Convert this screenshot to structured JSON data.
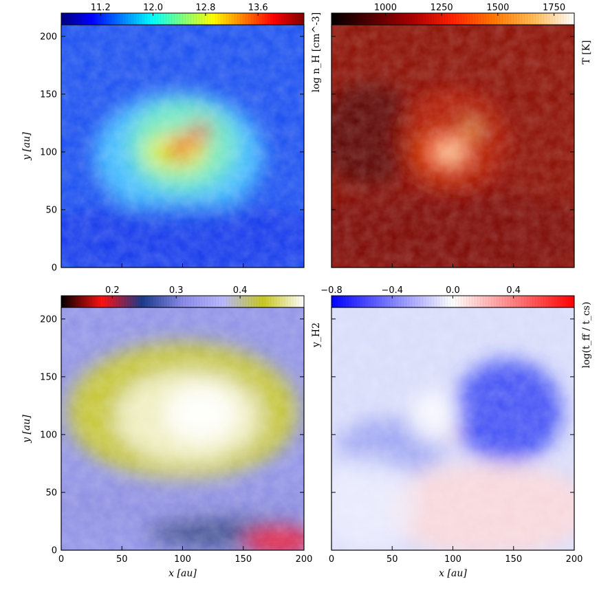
{
  "chart_data": [
    {
      "type": "heatmap",
      "panel": "top-left",
      "quantity": "density",
      "colorbar_label": "log n_H [cm^-3]",
      "colorbar_ticks": [
        "11.2",
        "12.0",
        "12.8",
        "13.6"
      ],
      "colorbar_tick_values": [
        11.2,
        12.0,
        12.8,
        13.6
      ],
      "colorbar_range": [
        10.6,
        14.3
      ],
      "colormap": [
        "#00007f",
        "#0000ff",
        "#007fff",
        "#00ffff",
        "#7fff7f",
        "#ffff00",
        "#ff7f00",
        "#ff0000",
        "#7f0000"
      ],
      "ylabel": "y [au]",
      "xlim": [
        0,
        200
      ],
      "ylim": [
        0,
        210
      ],
      "y_ticks": [
        0,
        50,
        100,
        150,
        200
      ],
      "y_tick_labels": [
        "0",
        "50",
        "100",
        "150",
        "200"
      ],
      "x_ticks": [
        0,
        50,
        100,
        150,
        200
      ],
      "x_tick_labels": [],
      "background": "#1a4ff0",
      "features": [
        {
          "x": 97,
          "y": 97,
          "rx": 70,
          "ry": 55,
          "color": "#45c7ff",
          "opacity": 0.9
        },
        {
          "x": 100,
          "y": 105,
          "rx": 45,
          "ry": 40,
          "color": "#7cf3b0",
          "opacity": 0.8
        },
        {
          "x": 95,
          "y": 100,
          "rx": 26,
          "ry": 17,
          "color": "#e8f538",
          "opacity": 0.9
        },
        {
          "x": 100,
          "y": 105,
          "rx": 14,
          "ry": 10,
          "color": "#ff8a1e",
          "opacity": 0.9
        },
        {
          "x": 96,
          "y": 98,
          "rx": 8,
          "ry": 6,
          "color": "#c00000",
          "opacity": 1
        },
        {
          "x": 115,
          "y": 118,
          "rx": 8,
          "ry": 9,
          "color": "#e02000",
          "opacity": 0.9
        },
        {
          "x": 100,
          "y": 25,
          "rx": 140,
          "ry": 30,
          "color": "#0a2fe8",
          "opacity": 0.7
        }
      ]
    },
    {
      "type": "heatmap",
      "panel": "top-right",
      "quantity": "temperature",
      "colorbar_label": "T [K]",
      "colorbar_ticks": [
        "1000",
        "1250",
        "1500",
        "1750"
      ],
      "colorbar_tick_values": [
        1000,
        1250,
        1500,
        1750
      ],
      "colorbar_range": [
        760,
        1840
      ],
      "colormap": [
        "#000000",
        "#550000",
        "#aa0000",
        "#ff2200",
        "#ff7700",
        "#ffbb55",
        "#ffffff"
      ],
      "xlim": [
        0,
        200
      ],
      "ylim": [
        0,
        210
      ],
      "y_ticks": [
        0,
        50,
        100,
        150,
        200
      ],
      "y_tick_labels": [],
      "x_ticks": [
        0,
        50,
        100,
        150,
        200
      ],
      "x_tick_labels": [],
      "background": "#8a0c00",
      "features": [
        {
          "x": 30,
          "y": 115,
          "rx": 40,
          "ry": 45,
          "color": "#500500",
          "opacity": 0.8
        },
        {
          "x": 100,
          "y": 110,
          "rx": 45,
          "ry": 45,
          "color": "#c21800",
          "opacity": 0.7
        },
        {
          "x": 95,
          "y": 100,
          "rx": 22,
          "ry": 18,
          "color": "#ff5a00",
          "opacity": 0.8
        },
        {
          "x": 98,
          "y": 100,
          "rx": 10,
          "ry": 8,
          "color": "#fff1c0",
          "opacity": 0.9
        },
        {
          "x": 115,
          "y": 120,
          "rx": 6,
          "ry": 7,
          "color": "#ffcc70",
          "opacity": 0.9
        },
        {
          "x": 100,
          "y": 30,
          "rx": 140,
          "ry": 35,
          "color": "#700800",
          "opacity": 0.6
        }
      ]
    },
    {
      "type": "heatmap",
      "panel": "bottom-left",
      "quantity": "H2 fraction",
      "colorbar_label": "y_H2",
      "colorbar_ticks": [
        "0.2",
        "0.3",
        "0.4"
      ],
      "colorbar_tick_values": [
        0.2,
        0.3,
        0.4
      ],
      "colorbar_range": [
        0.12,
        0.5
      ],
      "colormap": [
        "#000000",
        "#ff1010",
        "#1a3a8a",
        "#8a8ae8",
        "#b8b8ff",
        "#c8c820",
        "#ffffff"
      ],
      "xlabel": "x [au]",
      "ylabel": "y [au]",
      "xlim": [
        0,
        200
      ],
      "ylim": [
        0,
        210
      ],
      "y_ticks": [
        0,
        50,
        100,
        150,
        200
      ],
      "y_tick_labels": [
        "0",
        "50",
        "100",
        "150",
        "200"
      ],
      "x_ticks": [
        0,
        50,
        100,
        150,
        200
      ],
      "x_tick_labels": [
        "0",
        "50",
        "100",
        "150",
        "200"
      ],
      "background": "#8f92e6",
      "features": [
        {
          "x": 100,
          "y": 120,
          "rx": 95,
          "ry": 60,
          "color": "#c8c82a",
          "opacity": 0.95
        },
        {
          "x": 105,
          "y": 115,
          "rx": 60,
          "ry": 40,
          "color": "#f1f0c8",
          "opacity": 0.95
        },
        {
          "x": 115,
          "y": 118,
          "rx": 30,
          "ry": 25,
          "color": "#ffffff",
          "opacity": 0.9
        },
        {
          "x": 100,
          "y": 40,
          "rx": 140,
          "ry": 22,
          "color": "#8a8ae0",
          "opacity": 0.7
        },
        {
          "x": 140,
          "y": 15,
          "rx": 70,
          "ry": 14,
          "color": "#3a4a8a",
          "opacity": 0.9
        },
        {
          "x": 180,
          "y": 8,
          "rx": 30,
          "ry": 12,
          "color": "#f01030",
          "opacity": 0.95
        }
      ]
    },
    {
      "type": "heatmap",
      "panel": "bottom-right",
      "quantity": "timescale ratio",
      "colorbar_label": "log(t_ff / t_cs)",
      "colorbar_ticks": [
        "−0.8",
        "−0.4",
        "0.0",
        "0.4"
      ],
      "colorbar_tick_values": [
        -0.8,
        -0.4,
        0.0,
        0.4
      ],
      "colorbar_range": [
        -0.8,
        0.8
      ],
      "colormap": [
        "#0000ff",
        "#8080ff",
        "#ffffff",
        "#ff8080",
        "#ff0000"
      ],
      "xlabel": "x [au]",
      "xlim": [
        0,
        200
      ],
      "ylim": [
        0,
        210
      ],
      "y_ticks": [
        0,
        50,
        100,
        150,
        200
      ],
      "y_tick_labels": [],
      "x_ticks": [
        0,
        50,
        100,
        150,
        200
      ],
      "x_tick_labels": [
        "0",
        "50",
        "100",
        "150",
        "200"
      ],
      "background": "#d9dcfa",
      "features": [
        {
          "x": 145,
          "y": 120,
          "rx": 45,
          "ry": 45,
          "color": "#2a3af5",
          "opacity": 0.85
        },
        {
          "x": 50,
          "y": 90,
          "rx": 45,
          "ry": 25,
          "color": "#7a85ee",
          "opacity": 0.6
        },
        {
          "x": 85,
          "y": 115,
          "rx": 20,
          "ry": 22,
          "color": "#ffffff",
          "opacity": 0.8
        },
        {
          "x": 130,
          "y": 35,
          "rx": 85,
          "ry": 40,
          "color": "#fbd6d8",
          "opacity": 0.9
        },
        {
          "x": 100,
          "y": 100,
          "rx": 3,
          "ry": 3,
          "color": "#ee2020",
          "opacity": 1
        },
        {
          "x": 30,
          "y": 40,
          "rx": 40,
          "ry": 40,
          "color": "#eef0ff",
          "opacity": 0.7
        }
      ]
    }
  ]
}
